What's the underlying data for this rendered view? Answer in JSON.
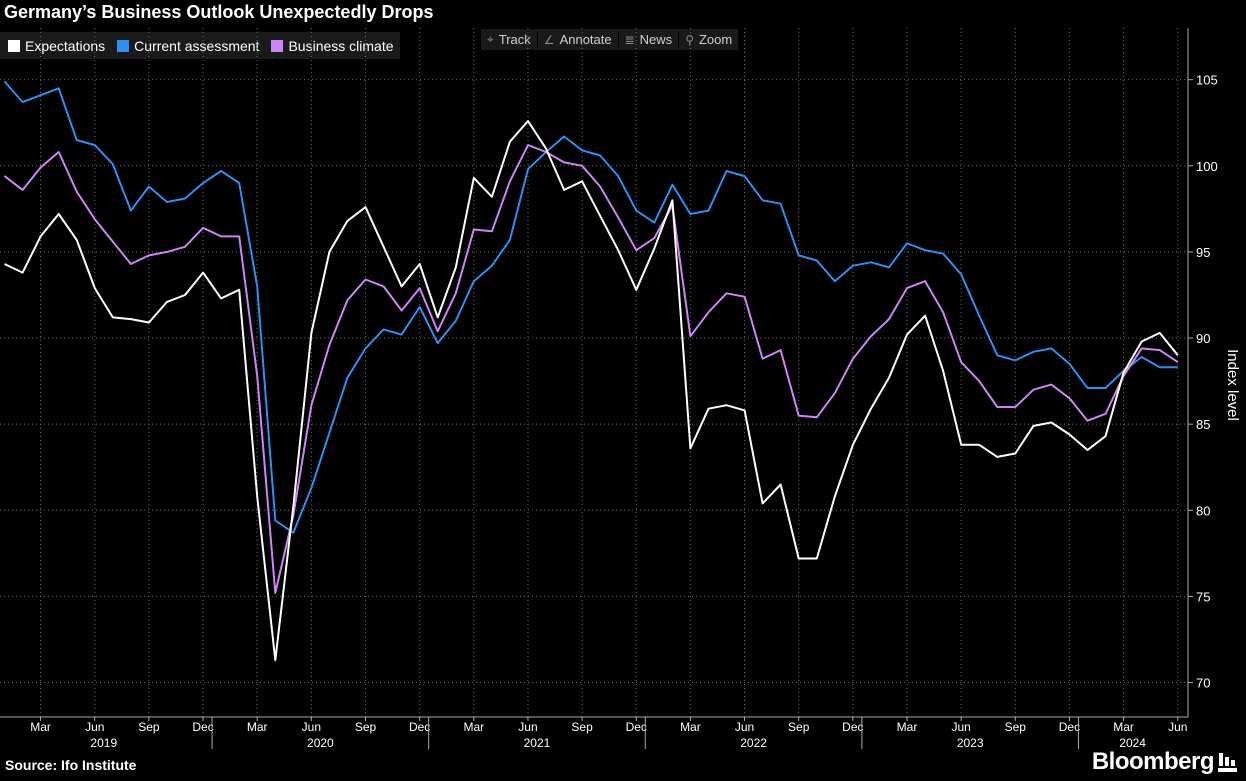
{
  "title": "Germany’s Business Outlook Unexpectedly Drops",
  "legend": [
    {
      "label": "Expectations",
      "color": "#ffffff"
    },
    {
      "label": "Current assessment",
      "color": "#2f8ff0"
    },
    {
      "label": "Business climate",
      "color": "#cc85f5"
    }
  ],
  "toolbar": [
    {
      "label": "Track",
      "icon": "crosshair-icon"
    },
    {
      "label": "Annotate",
      "icon": "pencil-icon"
    },
    {
      "label": "News",
      "icon": "news-icon"
    },
    {
      "label": "Zoom",
      "icon": "magnifier-icon"
    }
  ],
  "source": "Source: Ifo Institute",
  "brand": "Bloomberg",
  "chart_data": {
    "type": "line",
    "ylabel": "Index level",
    "ylim": [
      68,
      108
    ],
    "yticks": [
      70,
      75,
      80,
      85,
      90,
      95,
      100,
      105
    ],
    "x": [
      "2019-01",
      "2019-02",
      "2019-03",
      "2019-04",
      "2019-05",
      "2019-06",
      "2019-07",
      "2019-08",
      "2019-09",
      "2019-10",
      "2019-11",
      "2019-12",
      "2020-01",
      "2020-02",
      "2020-03",
      "2020-04",
      "2020-05",
      "2020-06",
      "2020-07",
      "2020-08",
      "2020-09",
      "2020-10",
      "2020-11",
      "2020-12",
      "2021-01",
      "2021-02",
      "2021-03",
      "2021-04",
      "2021-05",
      "2021-06",
      "2021-07",
      "2021-08",
      "2021-09",
      "2021-10",
      "2021-11",
      "2021-12",
      "2022-01",
      "2022-02",
      "2022-03",
      "2022-04",
      "2022-05",
      "2022-06",
      "2022-07",
      "2022-08",
      "2022-09",
      "2022-10",
      "2022-11",
      "2022-12",
      "2023-01",
      "2023-02",
      "2023-03",
      "2023-04",
      "2023-05",
      "2023-06",
      "2023-07",
      "2023-08",
      "2023-09",
      "2023-10",
      "2023-11",
      "2023-12",
      "2024-01",
      "2024-02",
      "2024-03",
      "2024-04",
      "2024-05",
      "2024-06"
    ],
    "x_month_ticks": [
      "Mar",
      "Jun",
      "Sep",
      "Dec",
      "Mar",
      "Jun",
      "Sep",
      "Dec",
      "Mar",
      "Jun",
      "Sep",
      "Dec",
      "Mar",
      "Jun",
      "Sep",
      "Dec",
      "Mar",
      "Jun",
      "Sep",
      "Dec",
      "Mar",
      "Jun"
    ],
    "x_year_labels": [
      "2019",
      "2020",
      "2021",
      "2022",
      "2023",
      "2024"
    ],
    "series": [
      {
        "name": "Expectations",
        "color": "#ffffff",
        "values": [
          94.3,
          93.8,
          95.9,
          97.2,
          95.7,
          92.9,
          91.2,
          91.1,
          90.9,
          92.1,
          92.5,
          93.8,
          92.3,
          92.8,
          80.8,
          71.3,
          80.2,
          90.3,
          95.0,
          96.8,
          97.6,
          95.3,
          93.0,
          94.3,
          91.2,
          94.1,
          99.3,
          98.2,
          101.4,
          102.6,
          101.0,
          98.6,
          99.1,
          97.1,
          95.1,
          92.8,
          95.2,
          98.0,
          83.6,
          85.9,
          86.1,
          85.8,
          80.4,
          81.5,
          77.2,
          77.2,
          80.8,
          83.8,
          85.9,
          87.7,
          90.2,
          91.3,
          88.1,
          83.8,
          83.8,
          83.1,
          83.3,
          84.9,
          85.1,
          84.4,
          83.5,
          84.3,
          88.0,
          89.8,
          90.3,
          89.0
        ]
      },
      {
        "name": "Current assessment",
        "color": "#2f8ff0",
        "values": [
          104.9,
          103.7,
          104.1,
          104.5,
          101.5,
          101.2,
          100.1,
          97.4,
          98.8,
          97.9,
          98.1,
          99.0,
          99.7,
          99.0,
          93.0,
          79.4,
          78.7,
          81.3,
          84.5,
          87.7,
          89.4,
          90.5,
          90.2,
          91.8,
          89.7,
          91.0,
          93.3,
          94.2,
          95.7,
          99.8,
          100.8,
          101.7,
          100.9,
          100.6,
          99.4,
          97.4,
          96.7,
          98.9,
          97.2,
          97.4,
          99.7,
          99.4,
          98.0,
          97.8,
          94.8,
          94.5,
          93.3,
          94.2,
          94.4,
          94.1,
          95.5,
          95.1,
          94.9,
          93.7,
          91.3,
          89.0,
          88.7,
          89.2,
          89.4,
          88.5,
          87.1,
          87.1,
          88.1,
          88.9,
          88.3,
          88.3
        ]
      },
      {
        "name": "Business climate",
        "color": "#cc85f5",
        "values": [
          99.4,
          98.6,
          99.9,
          100.8,
          98.5,
          96.9,
          95.6,
          94.3,
          94.8,
          95.0,
          95.3,
          96.4,
          95.9,
          95.9,
          87.8,
          75.2,
          79.7,
          86.1,
          89.6,
          92.2,
          93.4,
          93.0,
          91.6,
          92.9,
          90.4,
          92.6,
          96.3,
          96.2,
          99.1,
          101.2,
          100.8,
          100.2,
          100.0,
          98.8,
          97.0,
          95.1,
          95.8,
          97.7,
          90.1,
          91.5,
          92.6,
          92.4,
          88.8,
          89.3,
          85.5,
          85.4,
          86.8,
          88.8,
          90.1,
          91.1,
          92.9,
          93.3,
          91.5,
          88.6,
          87.5,
          86.0,
          86.0,
          87.0,
          87.3,
          86.5,
          85.2,
          85.6,
          87.8,
          89.4,
          89.3,
          88.6
        ]
      }
    ]
  }
}
